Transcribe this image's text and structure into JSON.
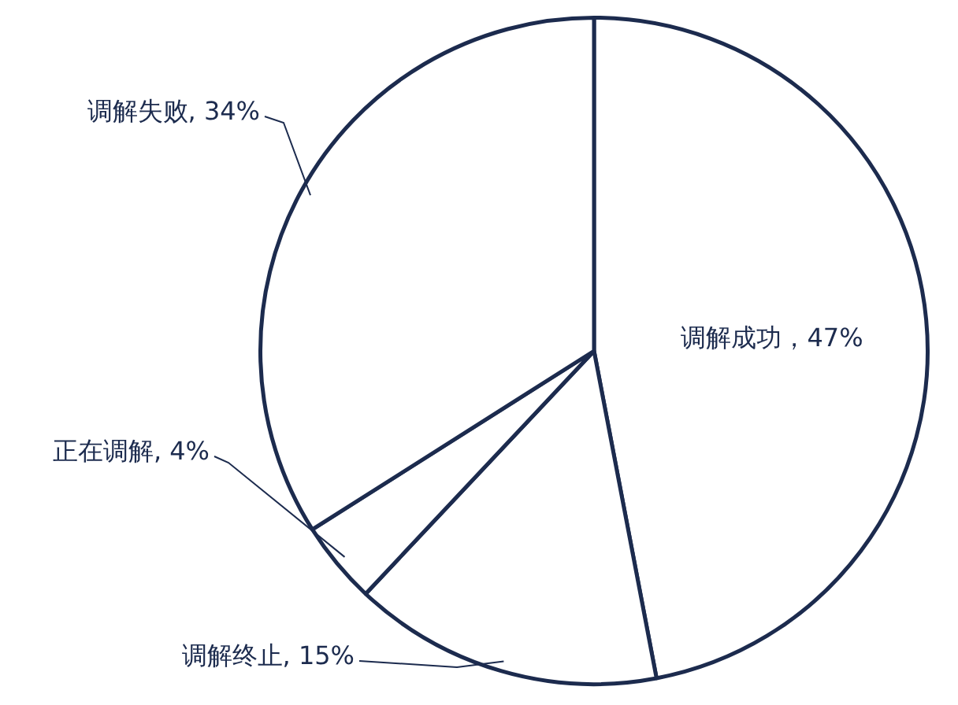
{
  "chart_data": {
    "type": "pie",
    "categories": [
      "调解成功",
      "调解终止",
      "正在调解",
      "调解失败"
    ],
    "values": [
      47,
      15,
      4,
      34
    ],
    "value_labels": [
      "，47%",
      ", 15%",
      ", 4%",
      ", 34%"
    ],
    "colors": [
      "#ffffff",
      "#ffffff",
      "#ffffff",
      "#ffffff"
    ],
    "legend": false
  }
}
